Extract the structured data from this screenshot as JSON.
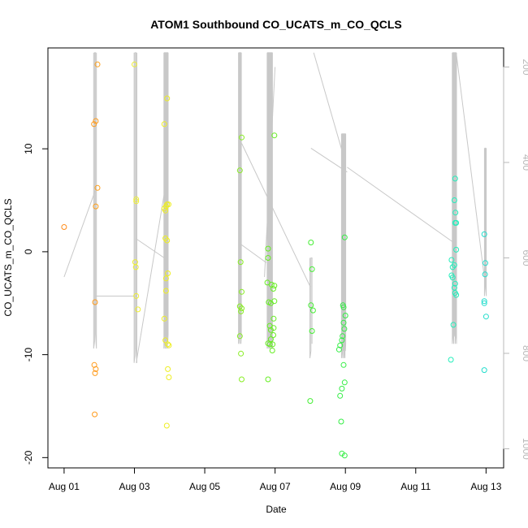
{
  "chart_data": {
    "type": "scatter",
    "title": "ATOM1 Southbound CO_UCATS_m_CO_QCLS",
    "xlabel": "Date",
    "ylabel": "CO_UCATS_m_CO_QCLS",
    "x_ticks": [
      "Aug 01",
      "Aug 03",
      "Aug 05",
      "Aug 07",
      "Aug 09",
      "Aug 11",
      "Aug 13"
    ],
    "x_tick_days": [
      1,
      3,
      5,
      7,
      9,
      11,
      13
    ],
    "xlim": [
      0.54,
      13.5
    ],
    "ylim": [
      -21.0,
      19.8
    ],
    "y_ticks": [
      -20,
      -10,
      0,
      10
    ],
    "y_tick_labels": [
      "-20",
      "-10",
      "0",
      "10"
    ],
    "right_axis": {
      "ticks": [
        200,
        400,
        600,
        800,
        1000
      ],
      "tick_labels": [
        "200",
        "400",
        "600",
        "800",
        "1000"
      ],
      "lim": [
        160,
        1040
      ],
      "reversed": true,
      "color": "#b8b8b8"
    },
    "grid": false,
    "legend": "none",
    "colors": {
      "profile_line": "#c8c8c8",
      "axis": "#000000",
      "right_axis": "#b8b8b8"
    },
    "series": [
      {
        "marker": "circle-open",
        "points": [
          {
            "x": 1.0,
            "y": 2.4,
            "color": "#ff8c1a"
          },
          {
            "x": 1.85,
            "y": 12.4,
            "color": "#ff9a1a"
          },
          {
            "x": 1.9,
            "y": 12.7,
            "color": "#ff9a1a"
          },
          {
            "x": 1.95,
            "y": 18.2,
            "color": "#ffa01a"
          },
          {
            "x": 1.95,
            "y": 6.2,
            "color": "#ffa01a"
          },
          {
            "x": 1.9,
            "y": 4.4,
            "color": "#ffa01a"
          },
          {
            "x": 1.88,
            "y": -4.9,
            "color": "#ff9a1a"
          },
          {
            "x": 1.86,
            "y": -11.0,
            "color": "#ff9a1a"
          },
          {
            "x": 1.9,
            "y": -11.4,
            "color": "#ff9a1a"
          },
          {
            "x": 1.88,
            "y": -11.8,
            "color": "#ff9a1a"
          },
          {
            "x": 1.87,
            "y": -15.8,
            "color": "#ff9a1a"
          },
          {
            "x": 3.0,
            "y": 18.2,
            "color": "#eeee33"
          },
          {
            "x": 3.05,
            "y": 5.1,
            "color": "#eeee33"
          },
          {
            "x": 3.05,
            "y": 4.9,
            "color": "#eeee33"
          },
          {
            "x": 3.02,
            "y": -1.0,
            "color": "#eeee33"
          },
          {
            "x": 3.04,
            "y": -1.5,
            "color": "#eeee33"
          },
          {
            "x": 3.05,
            "y": -4.3,
            "color": "#eeee33"
          },
          {
            "x": 3.1,
            "y": -5.6,
            "color": "#eeee33"
          },
          {
            "x": 3.85,
            "y": 12.4,
            "color": "#eeee22"
          },
          {
            "x": 3.93,
            "y": 14.9,
            "color": "#eeee22"
          },
          {
            "x": 3.85,
            "y": 4.2,
            "color": "#eeee22"
          },
          {
            "x": 3.9,
            "y": 4.4,
            "color": "#eeee22"
          },
          {
            "x": 3.93,
            "y": 4.6,
            "color": "#eeee22"
          },
          {
            "x": 3.97,
            "y": 4.6,
            "color": "#eeee22"
          },
          {
            "x": 3.88,
            "y": 4.0,
            "color": "#eeee22"
          },
          {
            "x": 3.88,
            "y": 1.3,
            "color": "#eeee22"
          },
          {
            "x": 3.93,
            "y": 1.1,
            "color": "#eeee22"
          },
          {
            "x": 3.95,
            "y": -2.1,
            "color": "#eeee22"
          },
          {
            "x": 3.9,
            "y": -2.6,
            "color": "#eeee22"
          },
          {
            "x": 3.9,
            "y": -3.8,
            "color": "#eeee22"
          },
          {
            "x": 3.85,
            "y": -6.5,
            "color": "#eeee22"
          },
          {
            "x": 3.88,
            "y": -8.6,
            "color": "#eeee22"
          },
          {
            "x": 3.95,
            "y": -9.0,
            "color": "#eeee22"
          },
          {
            "x": 3.98,
            "y": -9.1,
            "color": "#eeee22"
          },
          {
            "x": 3.95,
            "y": -11.4,
            "color": "#eeee22"
          },
          {
            "x": 3.98,
            "y": -12.2,
            "color": "#eeee22"
          },
          {
            "x": 3.92,
            "y": -16.9,
            "color": "#eeee22"
          },
          {
            "x": 6.05,
            "y": 11.1,
            "color": "#88ee22"
          },
          {
            "x": 6.0,
            "y": 7.9,
            "color": "#88ee22"
          },
          {
            "x": 6.02,
            "y": -1.0,
            "color": "#88ee22"
          },
          {
            "x": 6.05,
            "y": -3.9,
            "color": "#88ee22"
          },
          {
            "x": 6.0,
            "y": -5.3,
            "color": "#88ee22"
          },
          {
            "x": 6.05,
            "y": -5.5,
            "color": "#88ee22"
          },
          {
            "x": 6.03,
            "y": -5.8,
            "color": "#88ee22"
          },
          {
            "x": 6.0,
            "y": -8.2,
            "color": "#88ee22"
          },
          {
            "x": 6.03,
            "y": -9.9,
            "color": "#88ee22"
          },
          {
            "x": 6.05,
            "y": -12.4,
            "color": "#88ee22"
          },
          {
            "x": 6.98,
            "y": 11.3,
            "color": "#66ee22"
          },
          {
            "x": 6.8,
            "y": 0.3,
            "color": "#66ee22"
          },
          {
            "x": 6.8,
            "y": -0.6,
            "color": "#66ee22"
          },
          {
            "x": 6.78,
            "y": -3.0,
            "color": "#66ee22"
          },
          {
            "x": 6.9,
            "y": -3.2,
            "color": "#66ee22"
          },
          {
            "x": 6.98,
            "y": -3.3,
            "color": "#66ee22"
          },
          {
            "x": 6.95,
            "y": -3.6,
            "color": "#66ee22"
          },
          {
            "x": 6.82,
            "y": -4.9,
            "color": "#66ee22"
          },
          {
            "x": 6.88,
            "y": -5.0,
            "color": "#66ee22"
          },
          {
            "x": 6.98,
            "y": -4.8,
            "color": "#66ee22"
          },
          {
            "x": 6.96,
            "y": -6.5,
            "color": "#66ee22"
          },
          {
            "x": 6.85,
            "y": -7.2,
            "color": "#66ee22"
          },
          {
            "x": 6.88,
            "y": -7.6,
            "color": "#66ee22"
          },
          {
            "x": 6.96,
            "y": -7.4,
            "color": "#66ee22"
          },
          {
            "x": 6.95,
            "y": -8.1,
            "color": "#66ee22"
          },
          {
            "x": 6.88,
            "y": -8.5,
            "color": "#66ee22"
          },
          {
            "x": 6.8,
            "y": -8.9,
            "color": "#66ee22"
          },
          {
            "x": 6.85,
            "y": -9.0,
            "color": "#66ee22"
          },
          {
            "x": 6.93,
            "y": -9.0,
            "color": "#66ee22"
          },
          {
            "x": 6.92,
            "y": -9.6,
            "color": "#66ee22"
          },
          {
            "x": 6.8,
            "y": -12.4,
            "color": "#66ee22"
          },
          {
            "x": 8.02,
            "y": 0.9,
            "color": "#44ee33"
          },
          {
            "x": 8.05,
            "y": -1.7,
            "color": "#44ee33"
          },
          {
            "x": 8.02,
            "y": -5.2,
            "color": "#44ee33"
          },
          {
            "x": 8.08,
            "y": -5.7,
            "color": "#44ee33"
          },
          {
            "x": 8.05,
            "y": -7.7,
            "color": "#44ee33"
          },
          {
            "x": 8.0,
            "y": -14.5,
            "color": "#44ee33"
          },
          {
            "x": 8.98,
            "y": 1.4,
            "color": "#33ee44"
          },
          {
            "x": 8.93,
            "y": -5.2,
            "color": "#33ee44"
          },
          {
            "x": 8.95,
            "y": -5.4,
            "color": "#33ee44"
          },
          {
            "x": 9.0,
            "y": -6.2,
            "color": "#33ee44"
          },
          {
            "x": 8.95,
            "y": -6.9,
            "color": "#33ee44"
          },
          {
            "x": 8.97,
            "y": -7.5,
            "color": "#33ee44"
          },
          {
            "x": 8.92,
            "y": -8.2,
            "color": "#33ee44"
          },
          {
            "x": 8.9,
            "y": -8.6,
            "color": "#33ee44"
          },
          {
            "x": 8.85,
            "y": -9.1,
            "color": "#33ee44"
          },
          {
            "x": 8.82,
            "y": -9.5,
            "color": "#33ee44"
          },
          {
            "x": 8.95,
            "y": -11.0,
            "color": "#33ee44"
          },
          {
            "x": 8.98,
            "y": -12.7,
            "color": "#33ee44"
          },
          {
            "x": 8.9,
            "y": -13.3,
            "color": "#33ee44"
          },
          {
            "x": 8.85,
            "y": -14.0,
            "color": "#33ee44"
          },
          {
            "x": 8.88,
            "y": -16.5,
            "color": "#33ee44"
          },
          {
            "x": 8.9,
            "y": -19.6,
            "color": "#33ee44"
          },
          {
            "x": 8.98,
            "y": -19.8,
            "color": "#33ee44"
          },
          {
            "x": 12.12,
            "y": 7.1,
            "color": "#22eebb"
          },
          {
            "x": 12.1,
            "y": 5.0,
            "color": "#22eebb"
          },
          {
            "x": 12.13,
            "y": 3.8,
            "color": "#22eebb"
          },
          {
            "x": 12.15,
            "y": 2.8,
            "color": "#22eebb"
          },
          {
            "x": 12.12,
            "y": 2.8,
            "color": "#22eebb"
          },
          {
            "x": 12.15,
            "y": 0.2,
            "color": "#22eebb"
          },
          {
            "x": 12.02,
            "y": -0.8,
            "color": "#22eebb"
          },
          {
            "x": 12.05,
            "y": -1.5,
            "color": "#22eebb"
          },
          {
            "x": 12.1,
            "y": -1.3,
            "color": "#22eebb"
          },
          {
            "x": 12.02,
            "y": -2.3,
            "color": "#22eebb"
          },
          {
            "x": 12.05,
            "y": -2.5,
            "color": "#22eebb"
          },
          {
            "x": 12.12,
            "y": -3.1,
            "color": "#22eebb"
          },
          {
            "x": 12.1,
            "y": -3.5,
            "color": "#22eebb"
          },
          {
            "x": 12.12,
            "y": -4.0,
            "color": "#22eebb"
          },
          {
            "x": 12.15,
            "y": -4.2,
            "color": "#22eebb"
          },
          {
            "x": 12.07,
            "y": -7.1,
            "color": "#22eebb"
          },
          {
            "x": 12.0,
            "y": -10.5,
            "color": "#22eebb"
          },
          {
            "x": 12.95,
            "y": 1.7,
            "color": "#22ddcc"
          },
          {
            "x": 12.98,
            "y": -1.1,
            "color": "#22ddcc"
          },
          {
            "x": 12.97,
            "y": -2.2,
            "color": "#22ddcc"
          },
          {
            "x": 12.95,
            "y": -4.8,
            "color": "#22ddcc"
          },
          {
            "x": 12.95,
            "y": -5.0,
            "color": "#22ddcc"
          },
          {
            "x": 13.0,
            "y": -6.3,
            "color": "#22ddcc"
          },
          {
            "x": 12.95,
            "y": -11.5,
            "color": "#22ddcc"
          }
        ]
      }
    ],
    "profile_line": {
      "y_axis": "right",
      "sweeps": [
        {
          "x": 1.88,
          "top": 170,
          "bottom": 790,
          "spread": 0.08,
          "count": 4
        },
        {
          "x": 3.03,
          "top": 170,
          "bottom": 820,
          "spread": 0.08,
          "count": 4
        },
        {
          "x": 3.9,
          "top": 170,
          "bottom": 790,
          "spread": 0.12,
          "count": 12
        },
        {
          "x": 6.0,
          "top": 170,
          "bottom": 780,
          "spread": 0.08,
          "count": 8
        },
        {
          "x": 6.85,
          "top": 170,
          "bottom": 790,
          "spread": 0.15,
          "count": 16
        },
        {
          "x": 8.02,
          "top": 600,
          "bottom": 810,
          "spread": 0.06,
          "count": 3
        },
        {
          "x": 8.95,
          "top": 340,
          "bottom": 810,
          "spread": 0.12,
          "count": 12
        },
        {
          "x": 12.1,
          "top": 170,
          "bottom": 780,
          "spread": 0.12,
          "count": 10
        },
        {
          "x": 12.98,
          "top": 370,
          "bottom": 680,
          "spread": 0.05,
          "count": 4
        }
      ],
      "connectors": [
        [
          1.0,
          640
        ],
        [
          1.88,
          460
        ],
        [
          1.88,
          680
        ],
        [
          3.05,
          680
        ],
        [
          3.05,
          560
        ],
        [
          3.85,
          600
        ],
        [
          3.05,
          820
        ],
        [
          3.95,
          420
        ],
        [
          6.0,
          570
        ],
        [
          6.75,
          610
        ],
        [
          6.05,
          360
        ],
        [
          8.0,
          660
        ],
        [
          6.7,
          640
        ],
        [
          7.0,
          200
        ],
        [
          8.02,
          370
        ],
        [
          9.05,
          420
        ],
        [
          8.1,
          170
        ],
        [
          9.0,
          400
        ],
        [
          9.05,
          410
        ],
        [
          12.12,
          570
        ],
        [
          12.15,
          170
        ],
        [
          12.95,
          640
        ]
      ]
    }
  }
}
